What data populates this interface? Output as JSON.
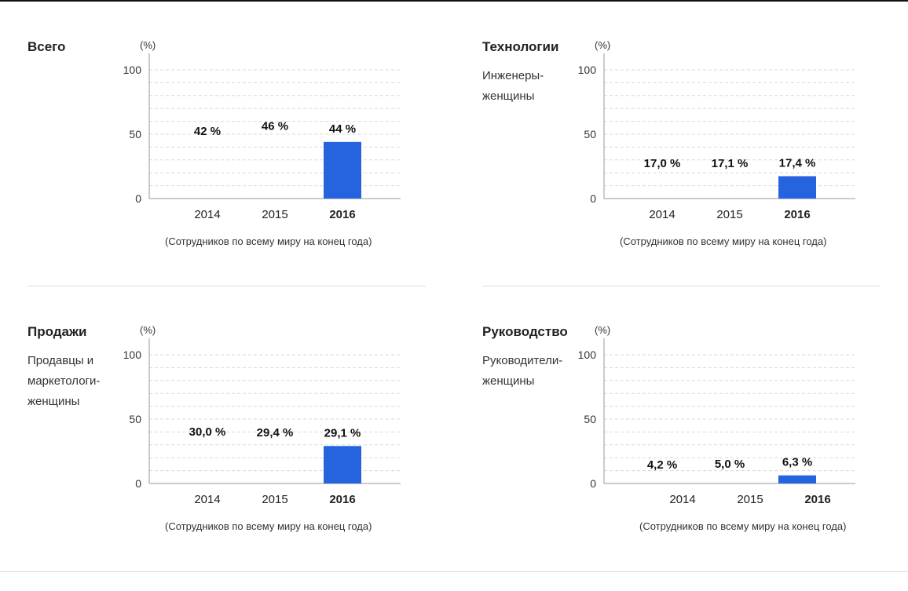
{
  "unit": "(%)",
  "footnote": "(Сотрудников по всему миру на конец года)",
  "colors": {
    "year_2014": "#1f43b8",
    "year_2015": "#0d2e8a",
    "year_2016": "#2563df",
    "grid": "#d9d9d9",
    "axis": "#999999"
  },
  "chart_data": [
    {
      "type": "bar",
      "title": "Всего",
      "subtitle": "",
      "categories": [
        "2014",
        "2015",
        "2016"
      ],
      "values": [
        42,
        46,
        44
      ],
      "labels": [
        "42 %",
        "46 %",
        "44 %"
      ],
      "yticks": [
        "0",
        "50",
        "100"
      ],
      "ylim": [
        0,
        110
      ]
    },
    {
      "type": "bar",
      "title": "Технологии",
      "subtitle": "Инженеры-женщины",
      "categories": [
        "2014",
        "2015",
        "2016"
      ],
      "values": [
        17.0,
        17.1,
        17.4
      ],
      "labels": [
        "17,0 %",
        "17,1 %",
        "17,4 %"
      ],
      "yticks": [
        "0",
        "50",
        "100"
      ],
      "ylim": [
        0,
        110
      ]
    },
    {
      "type": "bar",
      "title": "Продажи",
      "subtitle": "Продавцы и маркетологи-женщины",
      "categories": [
        "2014",
        "2015",
        "2016"
      ],
      "values": [
        30.0,
        29.4,
        29.1
      ],
      "labels": [
        "30,0 %",
        "29,4 %",
        "29,1 %"
      ],
      "yticks": [
        "0",
        "50",
        "100"
      ],
      "ylim": [
        0,
        110
      ]
    },
    {
      "type": "bar",
      "title": "Руководство",
      "subtitle": "Руководители-женщины",
      "categories": [
        "2014",
        "2015",
        "2016"
      ],
      "values": [
        4.2,
        5.0,
        6.3
      ],
      "labels": [
        "4,2 %",
        "5,0 %",
        "6,3 %"
      ],
      "yticks": [
        "0",
        "50",
        "100"
      ],
      "ylim": [
        0,
        110
      ]
    }
  ]
}
